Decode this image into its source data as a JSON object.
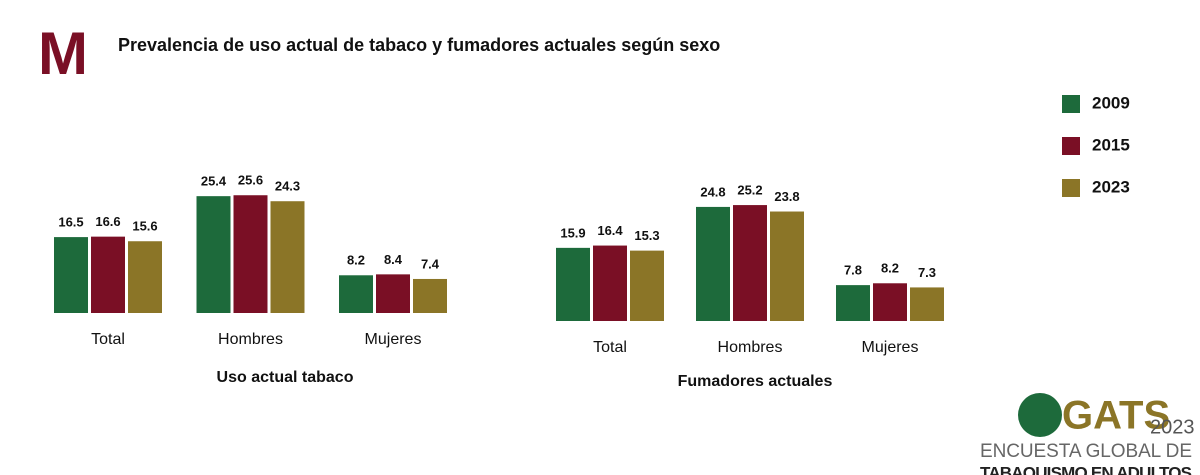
{
  "header": {
    "mark": "M",
    "title": "Prevalencia de uso actual de tabaco y fumadores actuales según sexo"
  },
  "legend": {
    "position": "right",
    "items": [
      {
        "name": "2009",
        "color": "#1d6a3b"
      },
      {
        "name": "2015",
        "color": "#7a0f25"
      },
      {
        "name": "2023",
        "color": "#8b7527"
      }
    ]
  },
  "chart_data": [
    {
      "type": "bar",
      "xlabel": "Uso actual tabaco",
      "categories": [
        "Total",
        "Hombres",
        "Mujeres"
      ],
      "series": [
        {
          "values": [
            16.5,
            25.4,
            8.2
          ]
        },
        {
          "values": [
            16.6,
            25.6,
            8.4
          ]
        },
        {
          "values": [
            15.6,
            24.3,
            7.4
          ]
        }
      ]
    },
    {
      "type": "bar",
      "xlabel": "Fumadores actuales",
      "categories": [
        "Total",
        "Hombres",
        "Mujeres"
      ],
      "series": [
        {
          "values": [
            15.9,
            24.8,
            7.8
          ]
        },
        {
          "values": [
            16.4,
            25.2,
            8.2
          ]
        },
        {
          "values": [
            15.3,
            23.8,
            7.3
          ]
        }
      ]
    }
  ],
  "logo": {
    "name": "GATS",
    "year": "2023",
    "line1": "ENCUESTA GLOBAL DE",
    "line2": "TABAQUISMO EN ADULTOS"
  }
}
